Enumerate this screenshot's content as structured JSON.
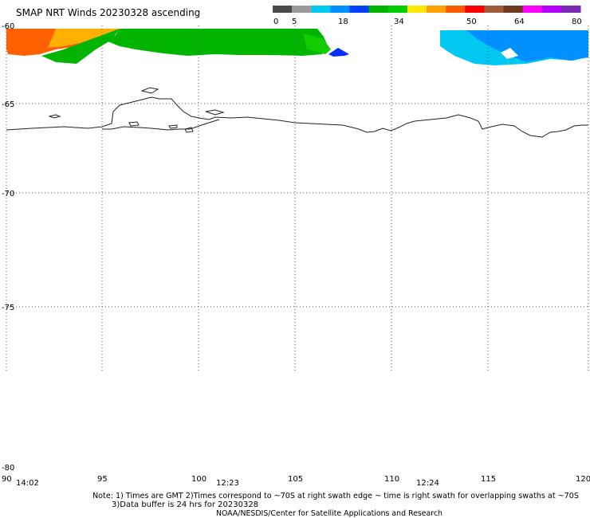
{
  "title": "SMAP NRT Winds 20230328 ascending",
  "colorbar": {
    "labels": [
      "0",
      "5",
      "18",
      "34",
      "50",
      "64",
      "80"
    ],
    "segments": [
      "#4a4a4a",
      "#9a9a9a",
      "#00c8f0",
      "#0090ff",
      "#0040ff",
      "#00b400",
      "#00cc00",
      "#ffe800",
      "#ffa000",
      "#ff5a00",
      "#ff0000",
      "#a05a3c",
      "#6e3a22",
      "#ff00ff",
      "#b400ff",
      "#7a28b4"
    ]
  },
  "axes": {
    "lat_labels": [
      "-60",
      "-65",
      "-70",
      "-75",
      "-80"
    ],
    "lon_labels": [
      "90",
      "95",
      "100",
      "105",
      "110",
      "115",
      "120"
    ]
  },
  "times": [
    "14:02",
    "12:23",
    "12:24"
  ],
  "notes": {
    "line1": "Note: 1) Times are GMT 2)Times correspond to ~70S at right swath edge ~ time is right swath for overlapping swaths at ~70S",
    "line2": "3)Data buffer is 24 hrs for 20230328",
    "line3": "NOAA/NESDIS/Center for Satellite Applications and Research"
  }
}
